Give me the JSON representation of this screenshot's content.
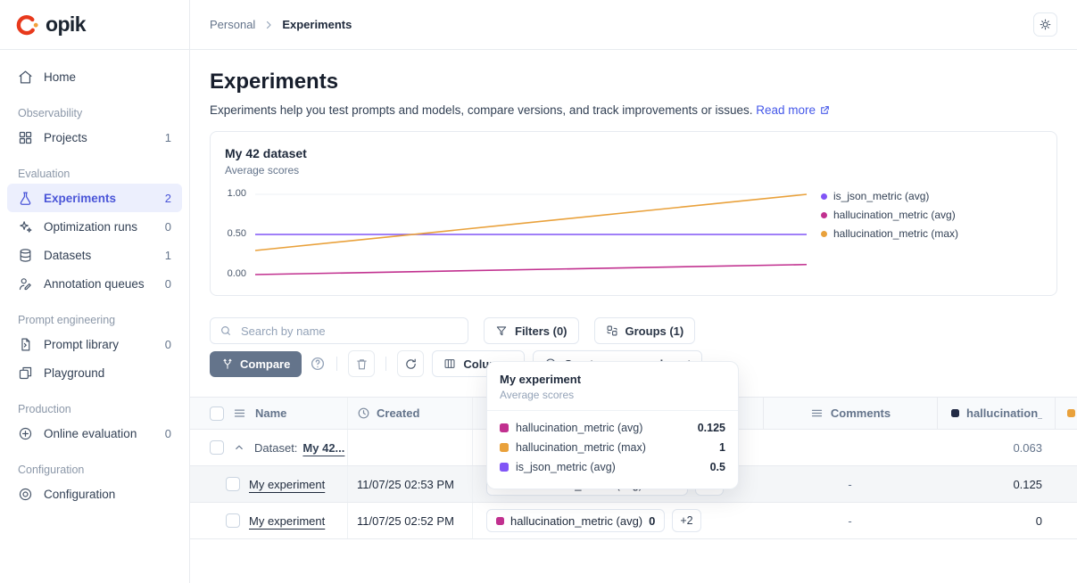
{
  "brand": {
    "name": "opik"
  },
  "topbar": {
    "breadcrumb": {
      "parent": "Personal",
      "current": "Experiments"
    },
    "theme_icon": "sun-icon"
  },
  "sidebar": {
    "home": {
      "label": "Home"
    },
    "sections": [
      {
        "title": "Observability",
        "items": [
          {
            "label": "Projects",
            "count": "1"
          }
        ]
      },
      {
        "title": "Evaluation",
        "items": [
          {
            "label": "Experiments",
            "count": "2"
          },
          {
            "label": "Optimization runs",
            "count": "0"
          },
          {
            "label": "Datasets",
            "count": "1"
          },
          {
            "label": "Annotation queues",
            "count": "0"
          }
        ]
      },
      {
        "title": "Prompt engineering",
        "items": [
          {
            "label": "Prompt library",
            "count": "0"
          },
          {
            "label": "Playground",
            "count": ""
          }
        ]
      },
      {
        "title": "Production",
        "items": [
          {
            "label": "Online evaluation",
            "count": "0"
          }
        ]
      },
      {
        "title": "Configuration",
        "items": [
          {
            "label": "Configuration",
            "count": ""
          }
        ]
      }
    ]
  },
  "page": {
    "title": "Experiments",
    "description": "Experiments help you test prompts and models, compare versions, and track improvements or issues.",
    "read_more_label": "Read more"
  },
  "chart_data": {
    "type": "line",
    "title": "My 42 dataset",
    "subtitle": "Average scores",
    "series": [
      {
        "name": "is_json_metric (avg)",
        "color": "#8155F6",
        "values": [
          0.5,
          0.5
        ]
      },
      {
        "name": "hallucination_metric (avg)",
        "color": "#C1308F",
        "values": [
          0,
          0.125
        ]
      },
      {
        "name": "hallucination_metric (max)",
        "color": "#E9A13B",
        "values": [
          0.3,
          1
        ]
      }
    ],
    "ytick_labels": [
      "1.00",
      "0.50",
      "0.00"
    ],
    "ylim": [
      0,
      1
    ],
    "x_points": 2,
    "x_tick_labels_visible": false,
    "grid": "single light gridline at y=1.00",
    "legend_position": "right"
  },
  "controls": {
    "search_placeholder": "Search by name",
    "filters_label": "Filters (0)",
    "groups_label": "Groups (1)"
  },
  "toolbar": {
    "compare_label": "Compare",
    "columns_label": "Columns",
    "create_label": "Create new experiment"
  },
  "tooltip": {
    "title": "My experiment",
    "subtitle": "Average scores",
    "rows": [
      {
        "label": "hallucination_metric (avg)",
        "value": "0.125",
        "color": "#C1308F"
      },
      {
        "label": "hallucination_metric (max)",
        "value": "1",
        "color": "#E9A13B"
      },
      {
        "label": "is_json_metric (avg)",
        "value": "0.5",
        "color": "#8155F6"
      }
    ]
  },
  "table": {
    "headers": {
      "name": "Name",
      "created": "Created",
      "comments": "Comments",
      "metric": "hallucination_...",
      "metric_swatch": "#222B45",
      "extra_swatch": "#E9A13B"
    },
    "group_row": {
      "prefix": "Dataset:",
      "name": "My 42...",
      "metric": "0.063"
    },
    "rows": [
      {
        "name": "My experiment",
        "created": "11/07/25 02:53 PM",
        "tag_label": "hallucination_metric (avg)",
        "tag_value": "0.125",
        "tag_color": "#C1308F",
        "more_badge": "+2",
        "comments": "-",
        "metric": "0.125"
      },
      {
        "name": "My experiment",
        "created": "11/07/25 02:52 PM",
        "tag_label": "hallucination_metric (avg)",
        "tag_value": "0",
        "tag_color": "#C1308F",
        "more_badge": "+2",
        "comments": "-",
        "metric": "0"
      }
    ]
  },
  "colors": {
    "accent": "#4A55D8",
    "magenta": "#C1308F",
    "orange": "#E9A13B",
    "purple": "#8155F6"
  }
}
